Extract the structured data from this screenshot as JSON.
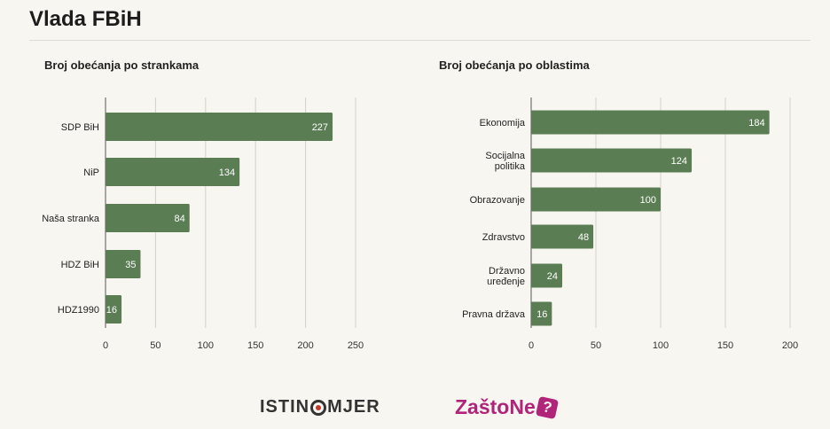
{
  "page": {
    "title": "Vlada FBiH"
  },
  "chart_data": [
    {
      "type": "bar",
      "orientation": "horizontal",
      "title": "Broj obećanja po strankama",
      "categories": [
        "SDP BiH",
        "NiP",
        "Naša stranka",
        "HDZ BiH",
        "HDZ1990"
      ],
      "values": [
        227,
        134,
        84,
        35,
        16
      ],
      "xlim": [
        0,
        250
      ],
      "xticks": [
        0,
        50,
        100,
        150,
        200,
        250
      ],
      "grid": true,
      "bar_color": "#5a7d53"
    },
    {
      "type": "bar",
      "orientation": "horizontal",
      "title": "Broj obećanja po oblastima",
      "categories": [
        "Ekonomija",
        "Socijalna politika",
        "Obrazovanje",
        "Zdravstvo",
        "Državno uređenje",
        "Pravna država"
      ],
      "values": [
        184,
        124,
        100,
        48,
        24,
        16
      ],
      "xlim": [
        0,
        200
      ],
      "xticks": [
        0,
        50,
        100,
        150,
        200
      ],
      "grid": true,
      "bar_color": "#5a7d53"
    }
  ],
  "logos": {
    "istinomjer": "ISTINOMJER",
    "zastone": "ZaštoNe"
  }
}
